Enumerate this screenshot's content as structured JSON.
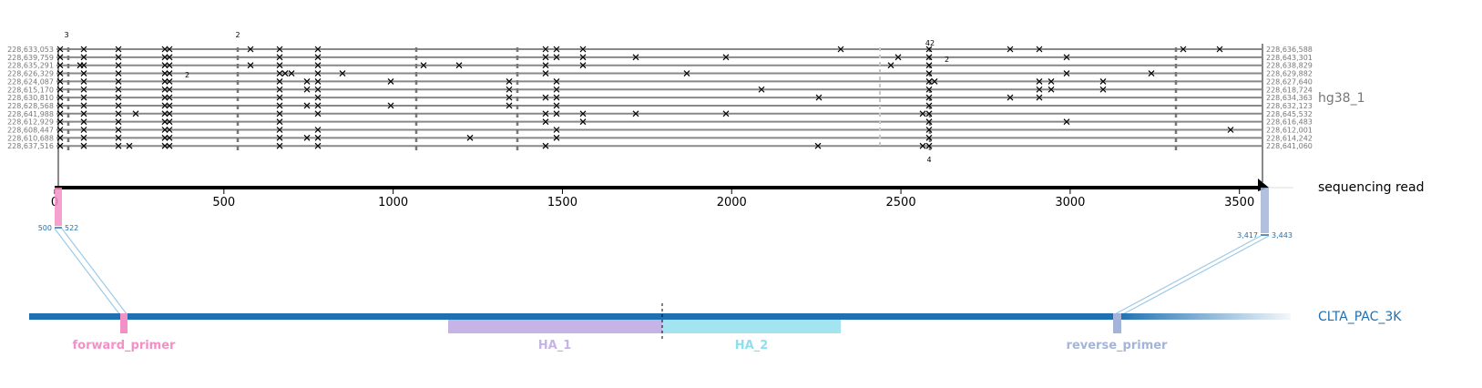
{
  "reference_name": "hg38_1",
  "read_label": "sequencing read",
  "amplicon_name": "CLTA_PAC_3K",
  "left_coords": [
    "228,633,053",
    "228,639,759",
    "228,635,291",
    "228,626,329",
    "228,624,087",
    "228,615,170",
    "228,630,810",
    "228,628,568",
    "228,641,988",
    "228,612,929",
    "228,608,447",
    "228,610,688",
    "228,637,516"
  ],
  "right_coords": [
    "228,636,588",
    "228,643,301",
    "228,638,829",
    "228,629,882",
    "228,627,640",
    "228,618,724",
    "228,634,363",
    "228,632,123",
    "228,645,532",
    "228,616,483",
    "228,612,001",
    "228,614,242",
    "228,641,060"
  ],
  "axis": {
    "ticks": [
      "0",
      "500",
      "1000",
      "1500",
      "2000",
      "2500",
      "3000",
      "3500"
    ],
    "range": [
      0,
      3560
    ]
  },
  "forward_primer_range": {
    "start_label": "500",
    "end_label": "522"
  },
  "reverse_primer_range": {
    "start_label": "3,417",
    "end_label": "3,443"
  },
  "features": [
    {
      "name": "forward_primer",
      "color": "#f391c6"
    },
    {
      "name": "HA_1",
      "color": "#c6b4e6"
    },
    {
      "name": "HA_2",
      "color": "#8fe0ee"
    },
    {
      "name": "reverse_primer",
      "color": "#a4b4d8"
    }
  ],
  "insertion_labels": {
    "top_left": "3",
    "top_mid": "2",
    "right_top": "42",
    "small_a": "2",
    "small_b": "2",
    "bottom": "4"
  },
  "colors": {
    "amplicon": "#1f70b0",
    "alignment": "#888888",
    "mismatch": "#000000",
    "zoom_lines": "#9ecae6"
  }
}
